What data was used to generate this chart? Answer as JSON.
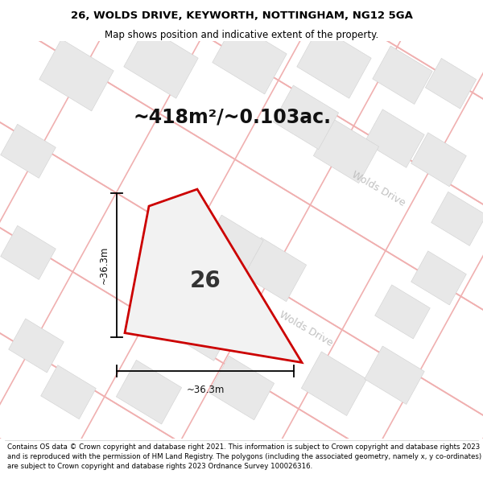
{
  "title_line1": "26, WOLDS DRIVE, KEYWORTH, NOTTINGHAM, NG12 5GA",
  "title_line2": "Map shows position and indicative extent of the property.",
  "area_text": "~418m²/~0.103ac.",
  "plot_number": "26",
  "dim_vertical": "~36.3m",
  "dim_horizontal": "~36.3m",
  "road_label1": "Wolds Drive",
  "road_label2": "Wolds Drive",
  "footer_text": "Contains OS data © Crown copyright and database right 2021. This information is subject to Crown copyright and database rights 2023 and is reproduced with the permission of HM Land Registry. The polygons (including the associated geometry, namely x, y co-ordinates) are subject to Crown copyright and database rights 2023 Ordnance Survey 100026316.",
  "bg_color": "#ffffff",
  "map_bg": "#ffffff",
  "plot_edge_color": "#cc0000",
  "plot_fill_color": "#f2f2f2",
  "grid_line_color": "#f0b0b0",
  "block_color": "#e8e8e8",
  "block_edge_color": "#d0d0d0",
  "title_fontsize": 9.5,
  "subtitle_fontsize": 8.5,
  "area_fontsize": 17,
  "plot_num_fontsize": 20,
  "dim_fontsize": 8.5,
  "road_fontsize": 9
}
